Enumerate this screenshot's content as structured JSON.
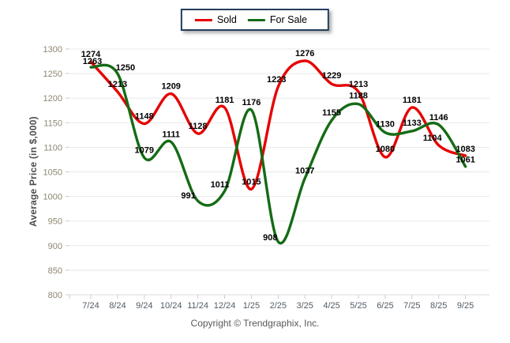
{
  "chart_data": {
    "type": "line",
    "categories": [
      "7/24",
      "8/24",
      "9/24",
      "10/24",
      "11/24",
      "12/24",
      "1/25",
      "2/25",
      "3/25",
      "4/25",
      "5/25",
      "6/25",
      "7/25",
      "8/25",
      "9/25"
    ],
    "series": [
      {
        "name": "Sold",
        "color": "#e60000",
        "values": [
          1274,
          1213,
          1148,
          1209,
          1128,
          1181,
          1015,
          1223,
          1276,
          1229,
          1213,
          1080,
          1181,
          1104,
          1083
        ],
        "label_offsets": [
          [
            0,
            -6
          ],
          [
            0,
            -6
          ],
          [
            0,
            -6
          ],
          [
            0,
            -6
          ],
          [
            0,
            -6
          ],
          [
            0,
            -6
          ],
          [
            0,
            -6
          ],
          [
            -2,
            -6
          ],
          [
            0,
            -6
          ],
          [
            0,
            -7
          ],
          [
            0,
            -6
          ],
          [
            0,
            -7
          ],
          [
            0,
            -6
          ],
          [
            -8,
            -6
          ],
          [
            0,
            -5
          ]
        ]
      },
      {
        "name": "For Sale",
        "color": "#156b15",
        "values": [
          1263,
          1250,
          1079,
          1111,
          991,
          1011,
          1176,
          908,
          1037,
          1155,
          1188,
          1130,
          1133,
          1146,
          1061
        ],
        "label_offsets": [
          [
            2,
            -4
          ],
          [
            10,
            -4
          ],
          [
            0,
            -6
          ],
          [
            0,
            -6
          ],
          [
            -12,
            -3
          ],
          [
            -6,
            -5
          ],
          [
            0,
            -6
          ],
          [
            -10,
            -2
          ],
          [
            0,
            -6
          ],
          [
            0,
            -6
          ],
          [
            0,
            -7
          ],
          [
            0,
            -7
          ],
          [
            0,
            -7
          ],
          [
            0,
            -6
          ],
          [
            0,
            -5
          ]
        ]
      }
    ],
    "title": "",
    "xlabel": "",
    "ylabel": "Average Price (in $,000)",
    "ylim": [
      800,
      1300
    ],
    "ytick_step": 50,
    "grid": true,
    "legend_position": "top-center",
    "colors": {
      "grid": "#e8e8e8",
      "axis": "#d4d8dd",
      "tick": "#c9ced6",
      "y_tick_label": "#8f8672",
      "x_tick_label": "#515c66",
      "data_label": "#000000",
      "legend_border": "#223e5e"
    }
  },
  "footer": {
    "copyright": "Copyright © Trendgraphix, Inc."
  }
}
